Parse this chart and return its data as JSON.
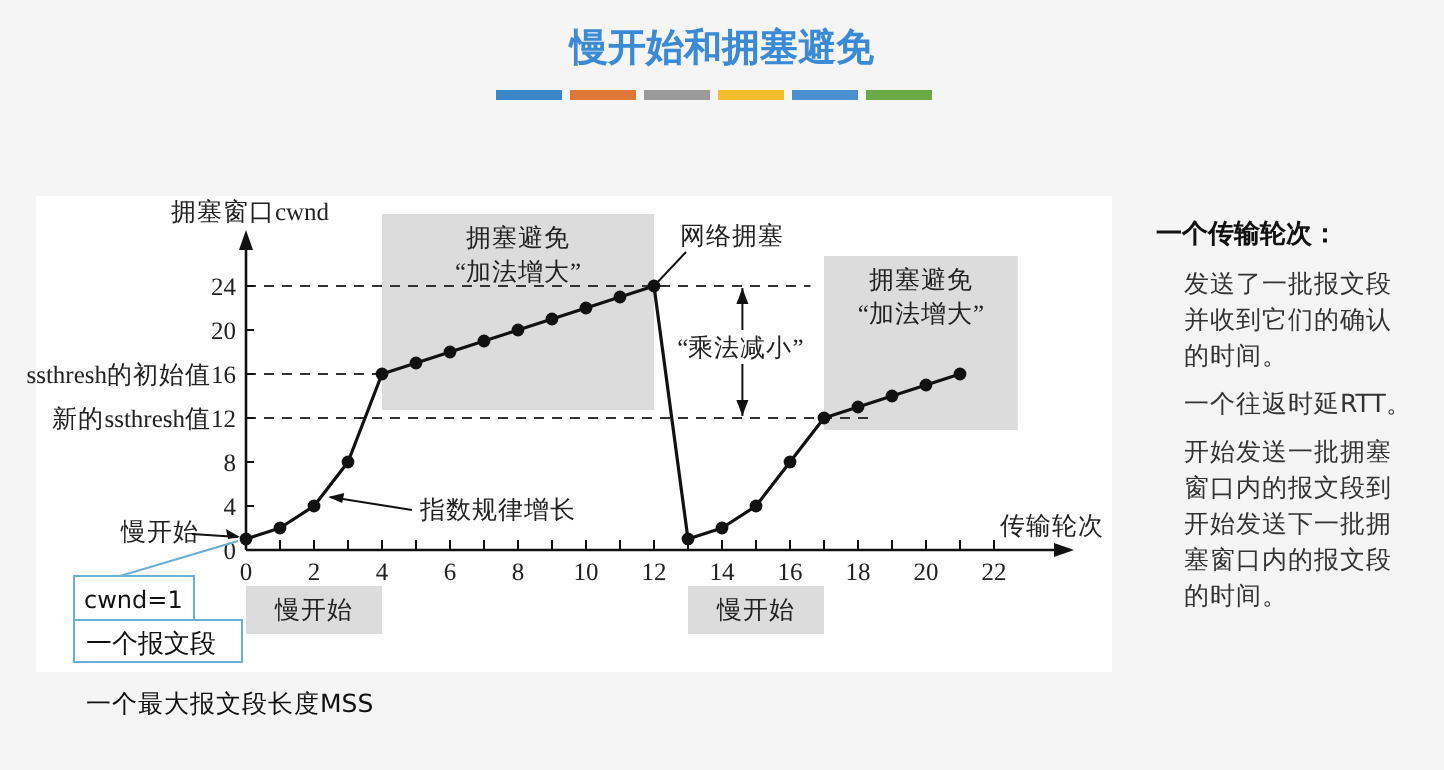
{
  "chart_data": {
    "type": "line",
    "title": "慢开始和拥塞避免",
    "xlabel": "传输轮次",
    "ylabel": "拥塞窗口cwnd",
    "x": [
      0,
      1,
      2,
      3,
      4,
      5,
      6,
      7,
      8,
      9,
      10,
      11,
      12,
      13,
      14,
      15,
      16,
      17,
      18,
      19,
      20,
      21
    ],
    "series": [
      {
        "color": "#111111",
        "values": [
          1,
          2,
          4,
          8,
          16,
          17,
          18,
          19,
          20,
          21,
          22,
          23,
          24,
          1,
          2,
          4,
          8,
          12,
          13,
          14,
          15,
          16
        ]
      }
    ],
    "xlim": [
      0,
      24
    ],
    "ylim": [
      0,
      28
    ],
    "xticks": [
      0,
      {
        "value": 1,
        "label": null
      },
      2,
      {
        "value": 3,
        "label": null
      },
      4,
      {
        "value": 5,
        "label": null
      },
      6,
      {
        "value": 7,
        "label": null
      },
      8,
      {
        "value": 9,
        "label": null
      },
      10,
      {
        "value": 11,
        "label": null
      },
      12,
      {
        "value": 13,
        "label": null
      },
      14,
      {
        "value": 15,
        "label": null
      },
      16,
      {
        "value": 17,
        "label": null
      },
      18,
      {
        "value": 19,
        "label": null
      },
      20,
      {
        "value": 21,
        "label": null
      },
      22
    ],
    "yticks": [
      0,
      4,
      8,
      {
        "value": 12,
        "label": "新的ssthresh值12"
      },
      {
        "value": 16,
        "label": "ssthresh的初始值16"
      },
      20,
      24
    ],
    "ref_lines": [
      {
        "axis": "y",
        "value": 24,
        "line_style": "dashed"
      },
      {
        "axis": "y",
        "value": 16,
        "line_style": "dashed"
      },
      {
        "axis": "y",
        "value": 12,
        "line_style": "dashed"
      }
    ],
    "bands": [
      {
        "axis": "x",
        "from": 4,
        "to": 12,
        "label": "拥塞避免\n“加法增大”",
        "color": "#dcdcdc"
      },
      {
        "axis": "x",
        "from": 17,
        "to": 22.7,
        "label": "拥塞避免\n“加法增大”",
        "color": "#dcdcdc"
      }
    ],
    "annotations": [
      {
        "text": "慢开始",
        "x": 0,
        "y": 1
      },
      {
        "text": "指数规律增长",
        "x": 2.3,
        "y": 5
      },
      {
        "text": "网络拥塞",
        "x": 12,
        "y": 24
      },
      {
        "text": "“乘法减小”",
        "x": 14.6,
        "y": 24
      },
      "cwnd=1",
      "一个报文段",
      "一个最大报文段长度MSS",
      "一个传输轮次：",
      "发送了一批报文段并收到它们的确认的时间。",
      "一个往返时延RTT。",
      "开始发送一批拥塞窗口内的报文段到开始发送下一批拥塞窗口内的报文段的时间。",
      "慢开始",
      "慢开始"
    ],
    "marker": "circle",
    "line_style": "solid",
    "grid": false
  }
}
